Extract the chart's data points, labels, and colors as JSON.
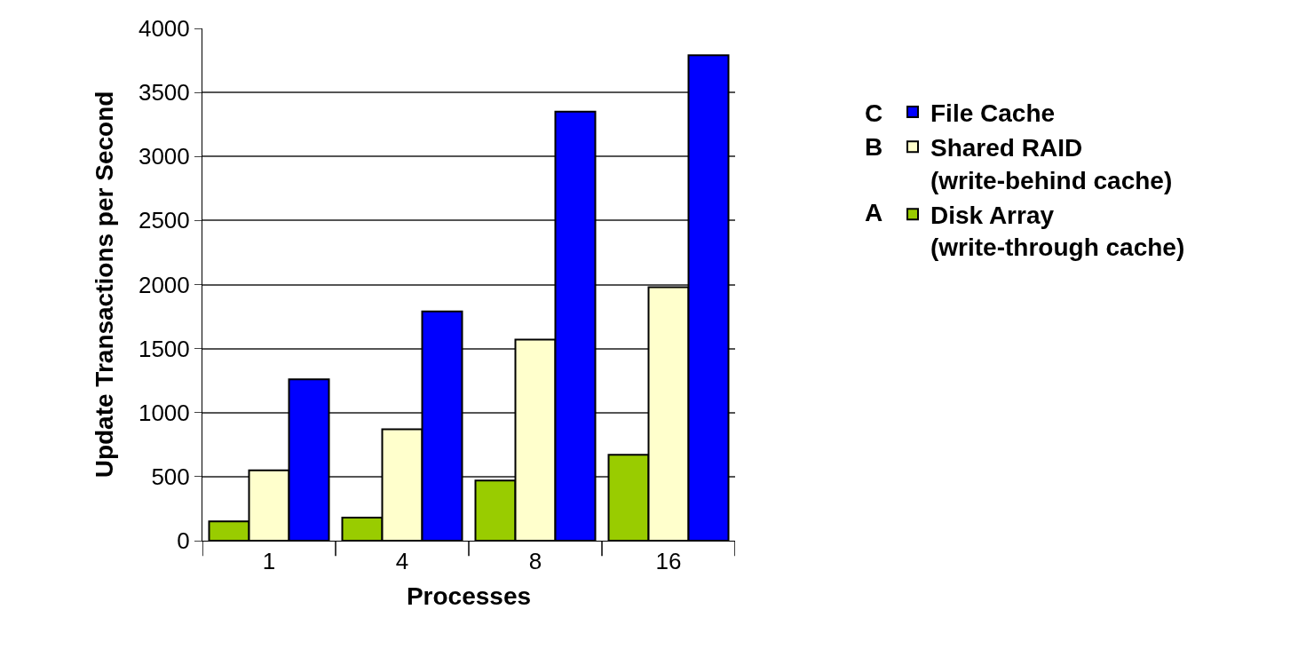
{
  "chart_data": {
    "type": "bar",
    "xlabel": "Processes",
    "ylabel": "Update Transactions per Second",
    "categories": [
      "1",
      "4",
      "8",
      "16"
    ],
    "series": [
      {
        "name": "Disk Array\n(write-through cache)",
        "color": "#99cc00",
        "values": [
          150,
          180,
          470,
          670
        ]
      },
      {
        "name": "Shared RAID\n(write-behind cache)",
        "color": "#ffffcc",
        "values": [
          550,
          870,
          1570,
          1980
        ]
      },
      {
        "name": "File Cache",
        "color": "#0000ff",
        "values": [
          1260,
          1790,
          3350,
          3790
        ]
      }
    ],
    "annotations": [
      "A",
      "B",
      "C"
    ],
    "ylim": [
      0,
      4000
    ],
    "yticks": [
      0,
      500,
      1000,
      1500,
      2000,
      2500,
      3000,
      3500,
      4000
    ],
    "grid": "y",
    "legend": "right"
  }
}
